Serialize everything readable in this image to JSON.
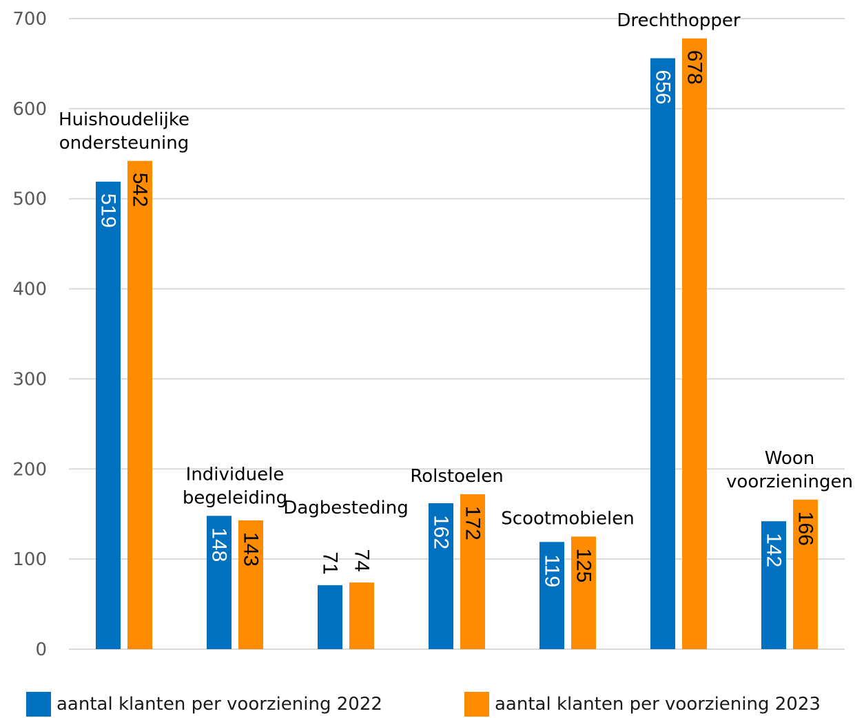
{
  "chart_data": {
    "type": "bar",
    "categories": [
      "Huishoudelijke ondersteuning",
      "Individuele begeleiding",
      "Dagbesteding",
      "Rolstoelen",
      "Scootmobielen",
      "Drechthopper",
      "Woon voorzieningen"
    ],
    "category_label_lines": [
      [
        "Huishoudelijke",
        "ondersteuning"
      ],
      [
        "Individuele",
        "begeleiding"
      ],
      [
        "Dagbesteding"
      ],
      [
        "Rolstoelen"
      ],
      [
        "Scootmobielen"
      ],
      [
        "Drechthopper"
      ],
      [
        "Woon",
        "voorzieningen"
      ]
    ],
    "series": [
      {
        "name": "aantal klanten per voorziening 2022",
        "color": "#0070C0",
        "values": [
          519,
          148,
          71,
          162,
          119,
          656,
          142
        ]
      },
      {
        "name": "aantal klanten per voorziening 2023",
        "color": "#FF8C00",
        "values": [
          542,
          143,
          74,
          172,
          125,
          678,
          166
        ]
      }
    ],
    "yticks": [
      "0",
      "100",
      "200",
      "300",
      "400",
      "500",
      "600",
      "700"
    ],
    "ylim": [
      0,
      700
    ],
    "grid": true,
    "legend": "bottom",
    "data_labels": "vertical"
  },
  "legend": {
    "item_2022": "aantal klanten per voorziening 2022",
    "item_2023": "aantal klanten per voorziening 2023"
  }
}
